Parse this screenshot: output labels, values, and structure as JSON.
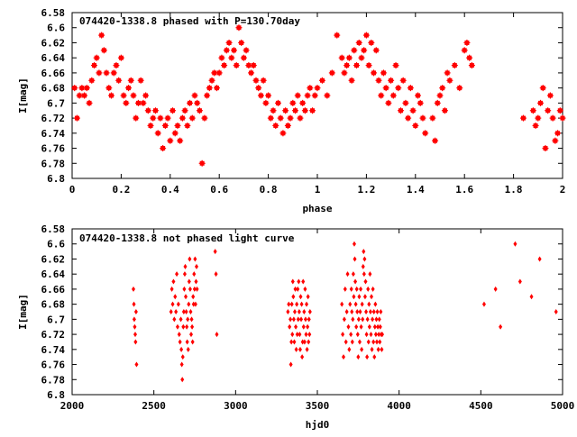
{
  "colors": {
    "series": "#ff0000",
    "axes": "#000000",
    "background": "#ffffff"
  },
  "chart_data": [
    {
      "type": "scatter",
      "title": "074420-1338.8 phased with P=130.70day",
      "xlabel": "phase",
      "ylabel": "I[mag]",
      "xlim": [
        0,
        2
      ],
      "ylim": [
        6.8,
        6.58
      ],
      "y_inverted": true,
      "grid": false,
      "marker": "filled-square-star",
      "x_ticks": [
        "0",
        "0.2",
        "0.4",
        "0.6",
        "0.8",
        "1",
        "1.2",
        "1.4",
        "1.6",
        "1.8",
        "2"
      ],
      "y_ticks": [
        "6.58",
        "6.6",
        "6.62",
        "6.64",
        "6.66",
        "6.68",
        "6.7",
        "6.72",
        "6.74",
        "6.76",
        "6.78",
        "6.8"
      ],
      "points": [
        [
          0.01,
          6.68
        ],
        [
          0.02,
          6.72
        ],
        [
          0.03,
          6.69
        ],
        [
          0.04,
          6.68
        ],
        [
          0.05,
          6.69
        ],
        [
          0.06,
          6.68
        ],
        [
          0.07,
          6.7
        ],
        [
          0.08,
          6.67
        ],
        [
          0.09,
          6.65
        ],
        [
          0.1,
          6.64
        ],
        [
          0.11,
          6.66
        ],
        [
          0.12,
          6.61
        ],
        [
          0.13,
          6.63
        ],
        [
          0.14,
          6.66
        ],
        [
          0.15,
          6.68
        ],
        [
          0.16,
          6.69
        ],
        [
          0.17,
          6.66
        ],
        [
          0.18,
          6.65
        ],
        [
          0.19,
          6.67
        ],
        [
          0.2,
          6.64
        ],
        [
          0.21,
          6.69
        ],
        [
          0.22,
          6.7
        ],
        [
          0.23,
          6.68
        ],
        [
          0.24,
          6.67
        ],
        [
          0.25,
          6.69
        ],
        [
          0.26,
          6.72
        ],
        [
          0.27,
          6.7
        ],
        [
          0.28,
          6.67
        ],
        [
          0.29,
          6.7
        ],
        [
          0.3,
          6.69
        ],
        [
          0.31,
          6.71
        ],
        [
          0.32,
          6.73
        ],
        [
          0.33,
          6.72
        ],
        [
          0.34,
          6.71
        ],
        [
          0.35,
          6.74
        ],
        [
          0.36,
          6.72
        ],
        [
          0.37,
          6.76
        ],
        [
          0.38,
          6.73
        ],
        [
          0.39,
          6.72
        ],
        [
          0.4,
          6.75
        ],
        [
          0.41,
          6.71
        ],
        [
          0.42,
          6.74
        ],
        [
          0.43,
          6.73
        ],
        [
          0.44,
          6.75
        ],
        [
          0.45,
          6.72
        ],
        [
          0.46,
          6.71
        ],
        [
          0.47,
          6.73
        ],
        [
          0.48,
          6.7
        ],
        [
          0.49,
          6.72
        ],
        [
          0.5,
          6.69
        ],
        [
          0.51,
          6.7
        ],
        [
          0.52,
          6.71
        ],
        [
          0.53,
          6.78
        ],
        [
          0.54,
          6.72
        ],
        [
          0.55,
          6.69
        ],
        [
          0.56,
          6.68
        ],
        [
          0.57,
          6.67
        ],
        [
          0.58,
          6.66
        ],
        [
          0.59,
          6.68
        ],
        [
          0.6,
          6.66
        ],
        [
          0.61,
          6.64
        ],
        [
          0.62,
          6.65
        ],
        [
          0.63,
          6.63
        ],
        [
          0.64,
          6.62
        ],
        [
          0.65,
          6.64
        ],
        [
          0.66,
          6.63
        ],
        [
          0.67,
          6.65
        ],
        [
          0.68,
          6.6
        ],
        [
          0.69,
          6.62
        ],
        [
          0.7,
          6.64
        ],
        [
          0.71,
          6.63
        ],
        [
          0.72,
          6.65
        ],
        [
          0.73,
          6.66
        ],
        [
          0.74,
          6.65
        ],
        [
          0.75,
          6.67
        ],
        [
          0.76,
          6.68
        ],
        [
          0.77,
          6.69
        ],
        [
          0.78,
          6.67
        ],
        [
          0.79,
          6.7
        ],
        [
          0.8,
          6.69
        ],
        [
          0.81,
          6.72
        ],
        [
          0.82,
          6.71
        ],
        [
          0.83,
          6.73
        ],
        [
          0.84,
          6.7
        ],
        [
          0.85,
          6.72
        ],
        [
          0.86,
          6.74
        ],
        [
          0.87,
          6.71
        ],
        [
          0.88,
          6.73
        ],
        [
          0.89,
          6.72
        ],
        [
          0.9,
          6.7
        ],
        [
          0.91,
          6.71
        ],
        [
          0.92,
          6.69
        ],
        [
          0.93,
          6.72
        ],
        [
          0.94,
          6.7
        ],
        [
          0.95,
          6.71
        ],
        [
          0.96,
          6.69
        ],
        [
          0.97,
          6.68
        ],
        [
          0.98,
          6.71
        ],
        [
          0.99,
          6.69
        ],
        [
          1.0,
          6.68
        ],
        [
          1.02,
          6.67
        ],
        [
          1.04,
          6.69
        ],
        [
          1.06,
          6.66
        ],
        [
          1.08,
          6.61
        ],
        [
          1.1,
          6.64
        ],
        [
          1.11,
          6.66
        ],
        [
          1.12,
          6.65
        ],
        [
          1.13,
          6.64
        ],
        [
          1.14,
          6.67
        ],
        [
          1.15,
          6.63
        ],
        [
          1.16,
          6.65
        ],
        [
          1.17,
          6.62
        ],
        [
          1.18,
          6.64
        ],
        [
          1.19,
          6.63
        ],
        [
          1.2,
          6.61
        ],
        [
          1.21,
          6.65
        ],
        [
          1.22,
          6.62
        ],
        [
          1.23,
          6.66
        ],
        [
          1.24,
          6.63
        ],
        [
          1.25,
          6.67
        ],
        [
          1.26,
          6.69
        ],
        [
          1.27,
          6.66
        ],
        [
          1.28,
          6.68
        ],
        [
          1.29,
          6.7
        ],
        [
          1.3,
          6.67
        ],
        [
          1.31,
          6.69
        ],
        [
          1.32,
          6.65
        ],
        [
          1.33,
          6.68
        ],
        [
          1.34,
          6.71
        ],
        [
          1.35,
          6.67
        ],
        [
          1.36,
          6.7
        ],
        [
          1.37,
          6.72
        ],
        [
          1.38,
          6.68
        ],
        [
          1.39,
          6.71
        ],
        [
          1.4,
          6.73
        ],
        [
          1.41,
          6.69
        ],
        [
          1.42,
          6.7
        ],
        [
          1.43,
          6.72
        ],
        [
          1.44,
          6.74
        ],
        [
          1.47,
          6.72
        ],
        [
          1.48,
          6.75
        ],
        [
          1.49,
          6.7
        ],
        [
          1.5,
          6.69
        ],
        [
          1.51,
          6.68
        ],
        [
          1.52,
          6.71
        ],
        [
          1.53,
          6.66
        ],
        [
          1.54,
          6.67
        ],
        [
          1.56,
          6.65
        ],
        [
          1.58,
          6.68
        ],
        [
          1.6,
          6.63
        ],
        [
          1.61,
          6.62
        ],
        [
          1.62,
          6.64
        ],
        [
          1.63,
          6.65
        ],
        [
          1.84,
          6.72
        ],
        [
          1.88,
          6.71
        ],
        [
          1.89,
          6.73
        ],
        [
          1.9,
          6.72
        ],
        [
          1.91,
          6.7
        ],
        [
          1.92,
          6.68
        ],
        [
          1.93,
          6.76
        ],
        [
          1.94,
          6.71
        ],
        [
          1.95,
          6.69
        ],
        [
          1.96,
          6.72
        ],
        [
          1.97,
          6.75
        ],
        [
          1.98,
          6.74
        ],
        [
          1.99,
          6.71
        ],
        [
          2.0,
          6.72
        ]
      ]
    },
    {
      "type": "scatter",
      "title": "074420-1338.8 not phased light curve",
      "xlabel": "hjd0",
      "ylabel": "I[mag]",
      "xlim": [
        2000,
        5000
      ],
      "ylim": [
        6.8,
        6.58
      ],
      "y_inverted": true,
      "grid": false,
      "marker": "filled-diamond",
      "x_ticks": [
        "2000",
        "2500",
        "3000",
        "3500",
        "4000",
        "4500",
        "5000"
      ],
      "y_ticks": [
        "6.58",
        "6.6",
        "6.62",
        "6.64",
        "6.66",
        "6.68",
        "6.7",
        "6.72",
        "6.74",
        "6.76",
        "6.78",
        "6.8"
      ],
      "points": [
        [
          2375,
          6.66
        ],
        [
          2378,
          6.68
        ],
        [
          2380,
          6.7
        ],
        [
          2383,
          6.71
        ],
        [
          2386,
          6.72
        ],
        [
          2388,
          6.73
        ],
        [
          2391,
          6.69
        ],
        [
          2394,
          6.76
        ],
        [
          2605,
          6.69
        ],
        [
          2610,
          6.66
        ],
        [
          2615,
          6.68
        ],
        [
          2620,
          6.65
        ],
        [
          2625,
          6.7
        ],
        [
          2630,
          6.67
        ],
        [
          2635,
          6.69
        ],
        [
          2640,
          6.64
        ],
        [
          2645,
          6.71
        ],
        [
          2650,
          6.68
        ],
        [
          2655,
          6.72
        ],
        [
          2660,
          6.73
        ],
        [
          2665,
          6.7
        ],
        [
          2668,
          6.74
        ],
        [
          2671,
          6.76
        ],
        [
          2674,
          6.78
        ],
        [
          2677,
          6.75
        ],
        [
          2680,
          6.71
        ],
        [
          2683,
          6.69
        ],
        [
          2686,
          6.66
        ],
        [
          2689,
          6.64
        ],
        [
          2692,
          6.63
        ],
        [
          2695,
          6.67
        ],
        [
          2698,
          6.69
        ],
        [
          2701,
          6.71
        ],
        [
          2704,
          6.73
        ],
        [
          2707,
          6.7
        ],
        [
          2710,
          6.74
        ],
        [
          2713,
          6.68
        ],
        [
          2716,
          6.65
        ],
        [
          2719,
          6.62
        ],
        [
          2722,
          6.66
        ],
        [
          2725,
          6.69
        ],
        [
          2728,
          6.72
        ],
        [
          2731,
          6.7
        ],
        [
          2734,
          6.71
        ],
        [
          2737,
          6.73
        ],
        [
          2740,
          6.67
        ],
        [
          2743,
          6.68
        ],
        [
          2746,
          6.64
        ],
        [
          2749,
          6.66
        ],
        [
          2752,
          6.62
        ],
        [
          2755,
          6.68
        ],
        [
          2758,
          6.65
        ],
        [
          2761,
          6.63
        ],
        [
          2764,
          6.66
        ],
        [
          2875,
          6.61
        ],
        [
          2880,
          6.64
        ],
        [
          2885,
          6.72
        ],
        [
          3320,
          6.69
        ],
        [
          3325,
          6.68
        ],
        [
          3330,
          6.71
        ],
        [
          3335,
          6.7
        ],
        [
          3338,
          6.76
        ],
        [
          3341,
          6.73
        ],
        [
          3344,
          6.68
        ],
        [
          3347,
          6.72
        ],
        [
          3350,
          6.65
        ],
        [
          3353,
          6.67
        ],
        [
          3356,
          6.7
        ],
        [
          3359,
          6.73
        ],
        [
          3362,
          6.69
        ],
        [
          3365,
          6.66
        ],
        [
          3368,
          6.71
        ],
        [
          3371,
          6.74
        ],
        [
          3374,
          6.68
        ],
        [
          3377,
          6.72
        ],
        [
          3380,
          6.66
        ],
        [
          3383,
          6.7
        ],
        [
          3386,
          6.65
        ],
        [
          3389,
          6.69
        ],
        [
          3392,
          6.72
        ],
        [
          3395,
          6.74
        ],
        [
          3398,
          6.67
        ],
        [
          3401,
          6.7
        ],
        [
          3404,
          6.68
        ],
        [
          3407,
          6.75
        ],
        [
          3410,
          6.73
        ],
        [
          3413,
          6.65
        ],
        [
          3416,
          6.71
        ],
        [
          3419,
          6.69
        ],
        [
          3422,
          6.73
        ],
        [
          3425,
          6.66
        ],
        [
          3428,
          6.7
        ],
        [
          3431,
          6.72
        ],
        [
          3434,
          6.68
        ],
        [
          3437,
          6.74
        ],
        [
          3440,
          6.71
        ],
        [
          3443,
          6.67
        ],
        [
          3446,
          6.73
        ],
        [
          3449,
          6.7
        ],
        [
          3452,
          6.72
        ],
        [
          3455,
          6.69
        ],
        [
          3650,
          6.68
        ],
        [
          3655,
          6.72
        ],
        [
          3660,
          6.75
        ],
        [
          3665,
          6.7
        ],
        [
          3670,
          6.66
        ],
        [
          3675,
          6.73
        ],
        [
          3680,
          6.69
        ],
        [
          3685,
          6.64
        ],
        [
          3690,
          6.71
        ],
        [
          3695,
          6.74
        ],
        [
          3700,
          6.68
        ],
        [
          3705,
          6.72
        ],
        [
          3708,
          6.66
        ],
        [
          3711,
          6.69
        ],
        [
          3714,
          6.73
        ],
        [
          3717,
          6.7
        ],
        [
          3720,
          6.64
        ],
        [
          3723,
          6.67
        ],
        [
          3726,
          6.6
        ],
        [
          3729,
          6.62
        ],
        [
          3732,
          6.65
        ],
        [
          3735,
          6.68
        ],
        [
          3738,
          6.71
        ],
        [
          3741,
          6.66
        ],
        [
          3744,
          6.69
        ],
        [
          3747,
          6.72
        ],
        [
          3750,
          6.75
        ],
        [
          3753,
          6.7
        ],
        [
          3756,
          6.67
        ],
        [
          3759,
          6.73
        ],
        [
          3762,
          6.69
        ],
        [
          3765,
          6.66
        ],
        [
          3768,
          6.71
        ],
        [
          3771,
          6.74
        ],
        [
          3774,
          6.68
        ],
        [
          3777,
          6.7
        ],
        [
          3780,
          6.63
        ],
        [
          3783,
          6.61
        ],
        [
          3786,
          6.64
        ],
        [
          3789,
          6.62
        ],
        [
          3792,
          6.67
        ],
        [
          3795,
          6.65
        ],
        [
          3798,
          6.69
        ],
        [
          3801,
          6.72
        ],
        [
          3804,
          6.75
        ],
        [
          3807,
          6.7
        ],
        [
          3810,
          6.66
        ],
        [
          3813,
          6.73
        ],
        [
          3816,
          6.68
        ],
        [
          3819,
          6.71
        ],
        [
          3822,
          6.64
        ],
        [
          3825,
          6.69
        ],
        [
          3828,
          6.72
        ],
        [
          3831,
          6.67
        ],
        [
          3834,
          6.74
        ],
        [
          3837,
          6.7
        ],
        [
          3840,
          6.66
        ],
        [
          3843,
          6.73
        ],
        [
          3846,
          6.69
        ],
        [
          3849,
          6.75
        ],
        [
          3852,
          6.71
        ],
        [
          3855,
          6.68
        ],
        [
          3858,
          6.72
        ],
        [
          3861,
          6.7
        ],
        [
          3864,
          6.73
        ],
        [
          3867,
          6.69
        ],
        [
          3870,
          6.71
        ],
        [
          3873,
          6.74
        ],
        [
          3876,
          6.72
        ],
        [
          3879,
          6.7
        ],
        [
          3882,
          6.73
        ],
        [
          3885,
          6.71
        ],
        [
          3888,
          6.69
        ],
        [
          3891,
          6.72
        ],
        [
          3894,
          6.74
        ],
        [
          3897,
          6.72
        ],
        [
          4520,
          6.68
        ],
        [
          4590,
          6.66
        ],
        [
          4620,
          6.71
        ],
        [
          4710,
          6.6
        ],
        [
          4740,
          6.65
        ],
        [
          4810,
          6.67
        ],
        [
          4860,
          6.62
        ],
        [
          4960,
          6.69
        ]
      ]
    }
  ]
}
